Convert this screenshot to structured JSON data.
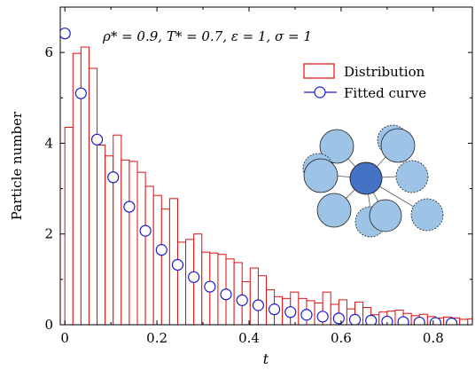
{
  "chart_data": {
    "type": "bar",
    "annotation": "ρ* = 0.9, T* = 0.7, ε = 1, σ = 1",
    "xlabel": "t",
    "ylabel": "Particle number",
    "xlim": [
      -0.01,
      0.885
    ],
    "ylim": [
      0,
      7.0
    ],
    "x_ticks": [
      0,
      0.2,
      0.4,
      0.6,
      0.8
    ],
    "x_tick_labels": [
      "0",
      "0.2",
      "0.4",
      "0.6",
      "0.8"
    ],
    "y_ticks": [
      0,
      2,
      4,
      6
    ],
    "y_tick_labels": [
      "0",
      "2",
      "4",
      "6"
    ],
    "legend_position": "top-right",
    "colors": {
      "bars": "#dd1111",
      "curve": "#1a1acc",
      "center_particle": "#4472c4",
      "neighbor_particle": "#9dc3e6"
    },
    "series": [
      {
        "name": "Distribution",
        "kind": "histogram",
        "bin_width": 0.0175,
        "bin_start": 0,
        "values": [
          4.35,
          5.98,
          6.12,
          5.65,
          3.96,
          3.72,
          4.18,
          3.63,
          3.6,
          3.36,
          3.05,
          2.85,
          2.55,
          2.78,
          1.82,
          1.88,
          2.0,
          1.6,
          1.58,
          1.55,
          1.45,
          1.37,
          0.95,
          1.25,
          1.08,
          0.77,
          0.62,
          0.58,
          0.72,
          0.58,
          0.53,
          0.48,
          0.72,
          0.45,
          0.55,
          0.35,
          0.5,
          0.38,
          0.22,
          0.28,
          0.3,
          0.32,
          0.25,
          0.2,
          0.23,
          0.18,
          0.15,
          0.17,
          0.15,
          0.12,
          0.13,
          0.11
        ]
      },
      {
        "name": "Fitted curve",
        "kind": "markers",
        "x": [
          0.0,
          0.035,
          0.07,
          0.105,
          0.14,
          0.175,
          0.21,
          0.245,
          0.28,
          0.315,
          0.35,
          0.385,
          0.42,
          0.455,
          0.49,
          0.525,
          0.56,
          0.595,
          0.63,
          0.665,
          0.7,
          0.735,
          0.77,
          0.805,
          0.84
        ],
        "y": [
          6.42,
          5.1,
          4.08,
          3.25,
          2.6,
          2.07,
          1.65,
          1.32,
          1.05,
          0.84,
          0.67,
          0.54,
          0.43,
          0.34,
          0.28,
          0.22,
          0.18,
          0.14,
          0.11,
          0.09,
          0.07,
          0.06,
          0.05,
          0.04,
          0.03
        ]
      }
    ]
  }
}
